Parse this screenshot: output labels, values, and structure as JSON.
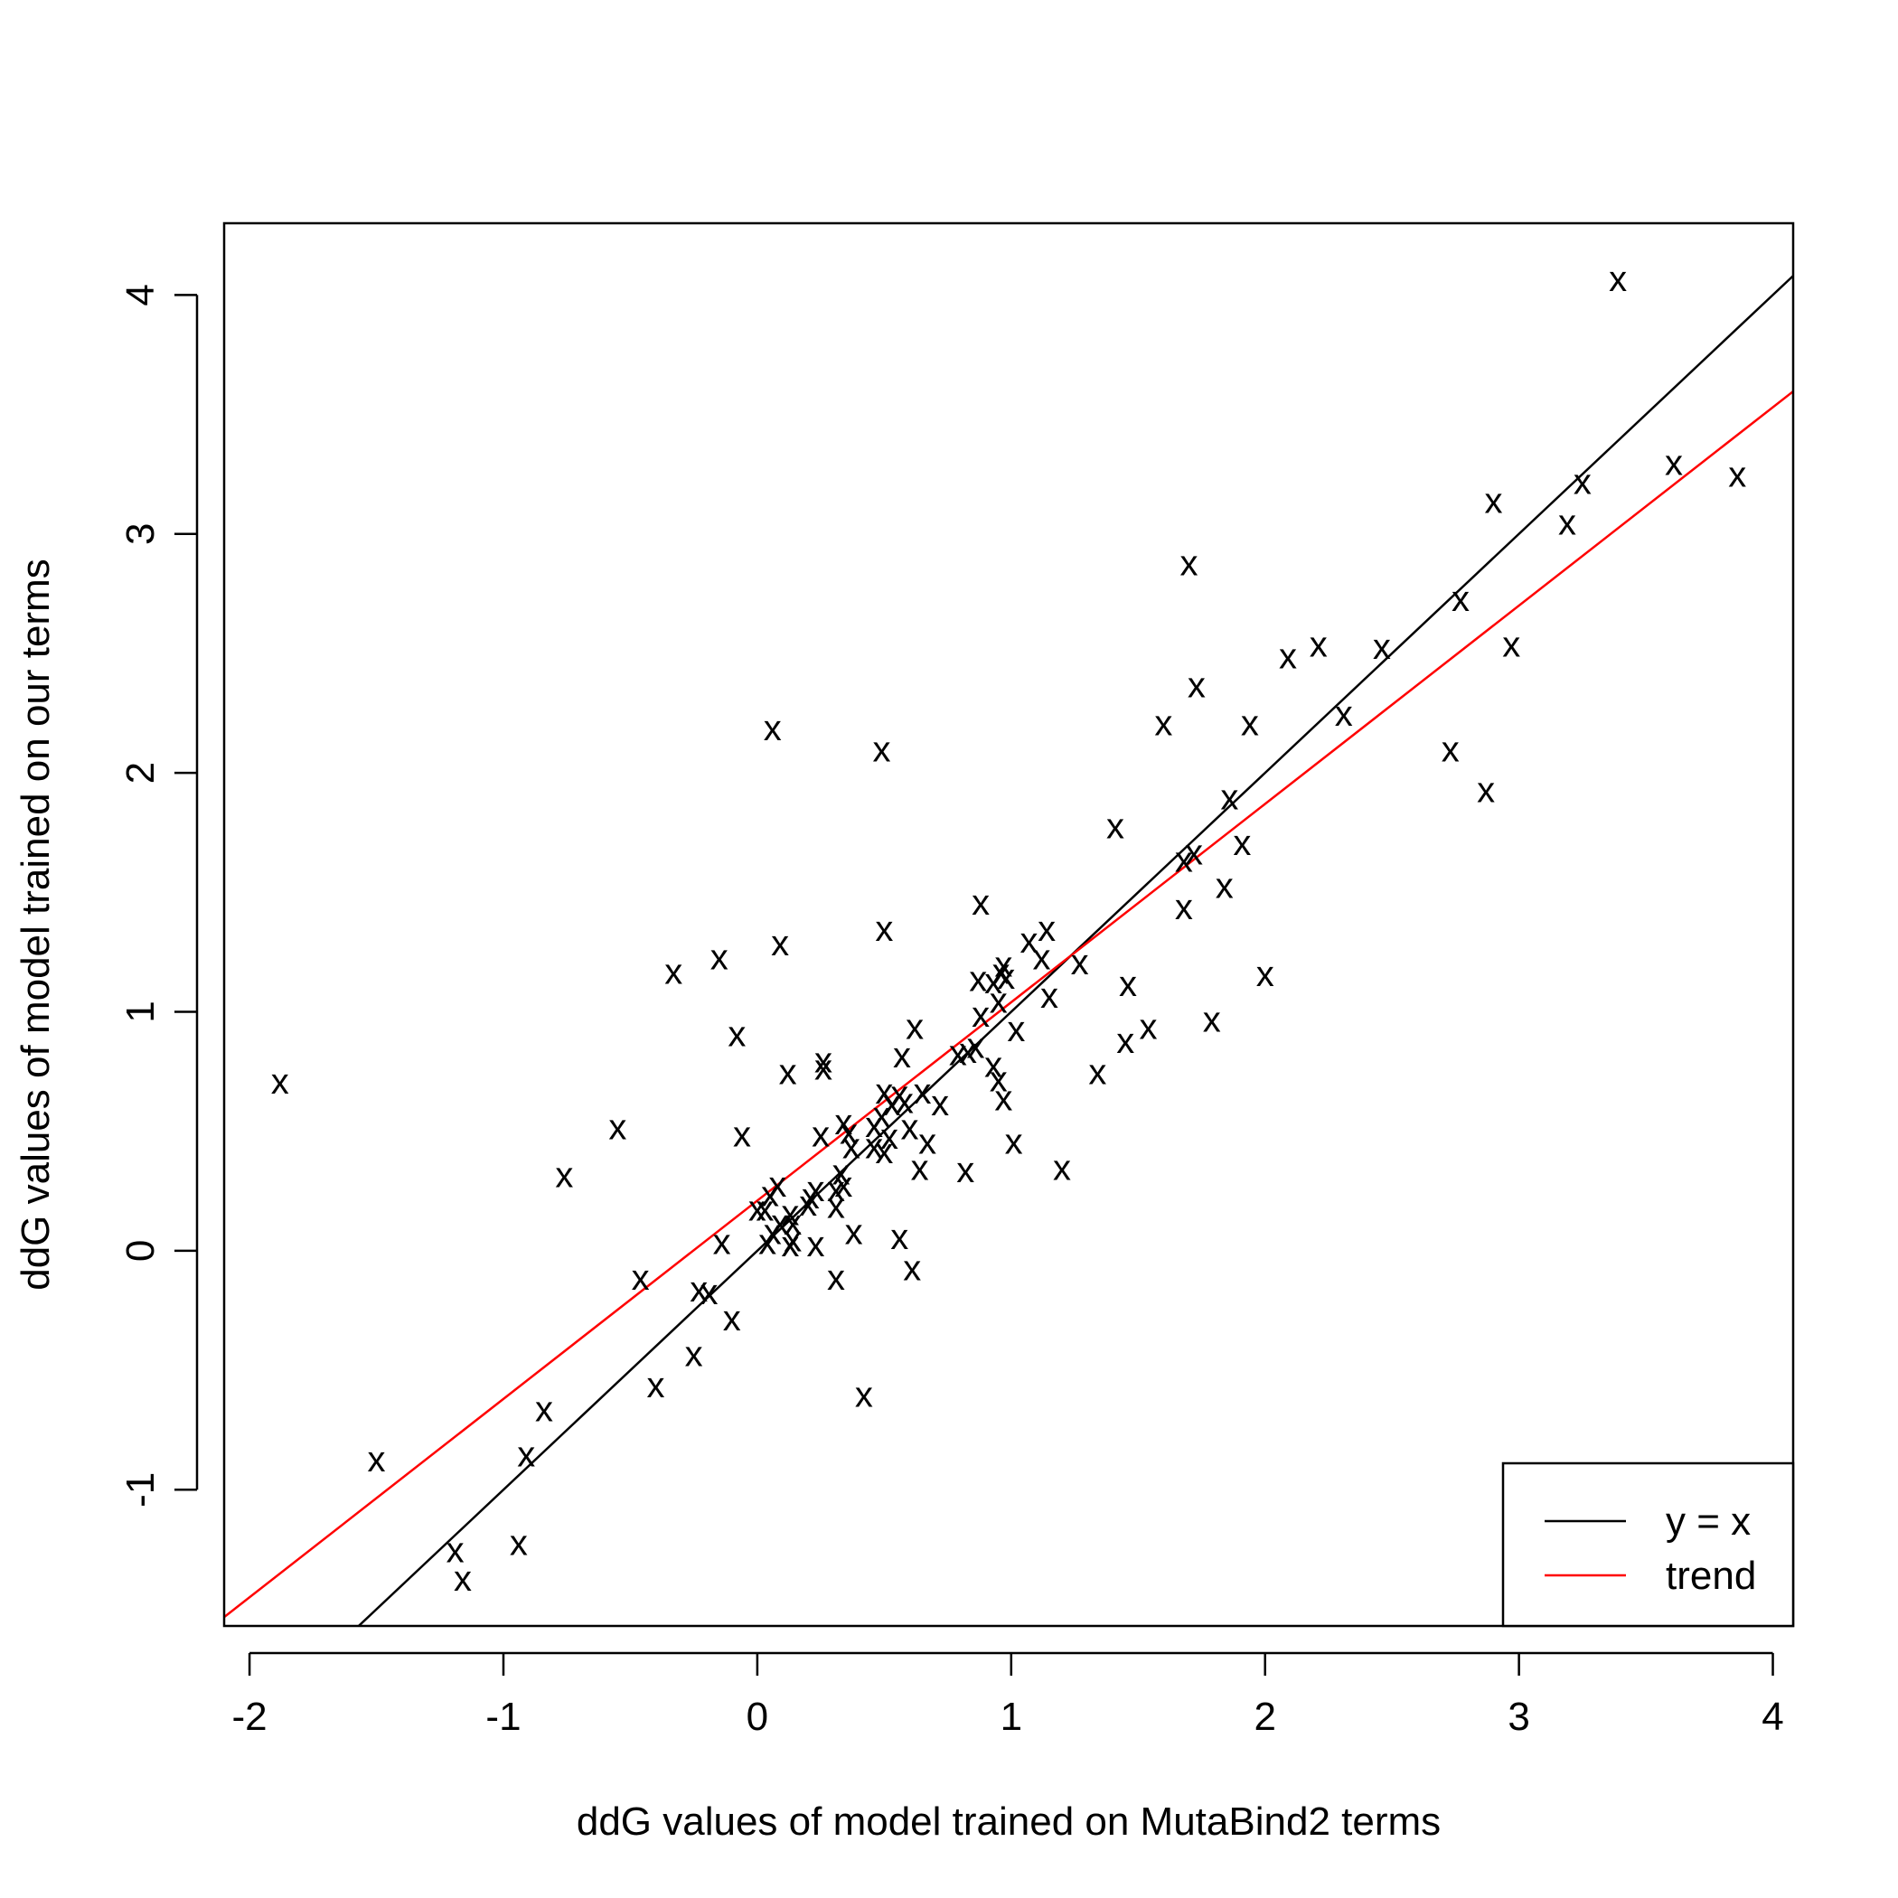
{
  "chart_data": {
    "type": "scatter",
    "title": "",
    "xlabel": "ddG values of model trained on MutaBind2 terms",
    "ylabel": "ddG values of model trained on our terms",
    "xlim": [
      -2.1,
      4.08
    ],
    "ylim": [
      -1.57,
      4.3
    ],
    "x_ticks": [
      -2,
      -1,
      0,
      1,
      2,
      3,
      4
    ],
    "y_ticks": [
      -1,
      0,
      1,
      2,
      3,
      4
    ],
    "x_tick_labels": [
      "-2",
      "-1",
      "0",
      "1",
      "2",
      "3",
      "4"
    ],
    "y_tick_labels": [
      "-1",
      "0",
      "1",
      "2",
      "3",
      "4"
    ],
    "grid": false,
    "marker": "x",
    "legend": {
      "position": "bottom-right",
      "entries": [
        {
          "label": "y = x",
          "color": "#000000"
        },
        {
          "label": "trend",
          "color": "#ff0000"
        }
      ]
    },
    "lines": [
      {
        "name": "y = x",
        "color": "#000000",
        "slope": 1.0,
        "intercept": 0.0
      },
      {
        "name": "trend",
        "color": "#ff0000",
        "slope": 0.83,
        "intercept": 0.21
      }
    ],
    "points": [
      {
        "x": 3.39,
        "y": 4.07
      },
      {
        "x": 3.61,
        "y": 3.3
      },
      {
        "x": 3.86,
        "y": 3.25
      },
      {
        "x": 3.25,
        "y": 3.22
      },
      {
        "x": 2.9,
        "y": 3.14
      },
      {
        "x": 3.19,
        "y": 3.05
      },
      {
        "x": 1.7,
        "y": 2.88
      },
      {
        "x": 2.77,
        "y": 2.73
      },
      {
        "x": 2.97,
        "y": 2.54
      },
      {
        "x": 2.46,
        "y": 2.53
      },
      {
        "x": 2.21,
        "y": 2.54
      },
      {
        "x": 2.09,
        "y": 2.49
      },
      {
        "x": 1.73,
        "y": 2.37
      },
      {
        "x": 2.31,
        "y": 2.25
      },
      {
        "x": 1.6,
        "y": 2.21
      },
      {
        "x": 1.94,
        "y": 2.21
      },
      {
        "x": 2.73,
        "y": 2.1
      },
      {
        "x": 2.87,
        "y": 1.93
      },
      {
        "x": 1.86,
        "y": 1.9
      },
      {
        "x": 1.41,
        "y": 1.78
      },
      {
        "x": 1.91,
        "y": 1.71
      },
      {
        "x": 1.68,
        "y": 1.64
      },
      {
        "x": 1.72,
        "y": 1.67
      },
      {
        "x": 1.84,
        "y": 1.53
      },
      {
        "x": 1.68,
        "y": 1.44
      },
      {
        "x": 0.88,
        "y": 1.46
      },
      {
        "x": 1.14,
        "y": 1.35
      },
      {
        "x": 1.07,
        "y": 1.3
      },
      {
        "x": 1.12,
        "y": 1.23
      },
      {
        "x": 1.27,
        "y": 1.21
      },
      {
        "x": 0.97,
        "y": 1.2
      },
      {
        "x": 0.96,
        "y": 1.17
      },
      {
        "x": 0.98,
        "y": 1.15
      },
      {
        "x": 0.87,
        "y": 1.14
      },
      {
        "x": 0.93,
        "y": 1.13
      },
      {
        "x": 1.46,
        "y": 1.12
      },
      {
        "x": 2.0,
        "y": 1.16
      },
      {
        "x": 0.95,
        "y": 1.05
      },
      {
        "x": 1.15,
        "y": 1.07
      },
      {
        "x": 0.88,
        "y": 0.99
      },
      {
        "x": 1.79,
        "y": 0.97
      },
      {
        "x": 1.54,
        "y": 0.94
      },
      {
        "x": 0.62,
        "y": 0.94
      },
      {
        "x": 1.02,
        "y": 0.93
      },
      {
        "x": 1.45,
        "y": 0.88
      },
      {
        "x": 0.57,
        "y": 0.82
      },
      {
        "x": 0.83,
        "y": 0.84
      },
      {
        "x": 0.79,
        "y": 0.83
      },
      {
        "x": 0.86,
        "y": 0.86
      },
      {
        "x": 0.93,
        "y": 0.78
      },
      {
        "x": 0.95,
        "y": 0.72
      },
      {
        "x": 1.34,
        "y": 0.75
      },
      {
        "x": 0.97,
        "y": 0.64
      },
      {
        "x": 0.5,
        "y": 0.67
      },
      {
        "x": 0.53,
        "y": 0.62
      },
      {
        "x": 0.56,
        "y": 0.66
      },
      {
        "x": 0.58,
        "y": 0.63
      },
      {
        "x": 0.65,
        "y": 0.67
      },
      {
        "x": 0.72,
        "y": 0.62
      },
      {
        "x": 0.49,
        "y": 0.57
      },
      {
        "x": 0.46,
        "y": 0.53
      },
      {
        "x": 0.52,
        "y": 0.48
      },
      {
        "x": 0.6,
        "y": 0.52
      },
      {
        "x": 0.67,
        "y": 0.46
      },
      {
        "x": 1.01,
        "y": 0.46
      },
      {
        "x": 0.46,
        "y": 0.44
      },
      {
        "x": 0.5,
        "y": 0.42
      },
      {
        "x": 0.36,
        "y": 0.5
      },
      {
        "x": 0.34,
        "y": 0.54
      },
      {
        "x": 0.37,
        "y": 0.44
      },
      {
        "x": 0.25,
        "y": 0.49
      },
      {
        "x": 0.26,
        "y": 0.8
      },
      {
        "x": 0.26,
        "y": 0.77
      },
      {
        "x": 0.12,
        "y": 0.75
      },
      {
        "x": 0.64,
        "y": 0.35
      },
      {
        "x": 0.82,
        "y": 0.34
      },
      {
        "x": 1.2,
        "y": 0.35
      },
      {
        "x": 0.33,
        "y": 0.33
      },
      {
        "x": 0.34,
        "y": 0.28
      },
      {
        "x": 0.31,
        "y": 0.26
      },
      {
        "x": 0.23,
        "y": 0.26
      },
      {
        "x": 0.21,
        "y": 0.23
      },
      {
        "x": 0.2,
        "y": 0.2
      },
      {
        "x": 0.31,
        "y": 0.19
      },
      {
        "x": 0.08,
        "y": 0.28
      },
      {
        "x": 0.05,
        "y": 0.24
      },
      {
        "x": 0.03,
        "y": 0.18
      },
      {
        "x": 0.0,
        "y": 0.18
      },
      {
        "x": 0.09,
        "y": 0.12
      },
      {
        "x": 0.13,
        "y": 0.16
      },
      {
        "x": 0.14,
        "y": 0.12
      },
      {
        "x": 0.14,
        "y": 0.05
      },
      {
        "x": 0.06,
        "y": 0.08
      },
      {
        "x": 0.04,
        "y": 0.04
      },
      {
        "x": 0.13,
        "y": 0.03
      },
      {
        "x": 0.23,
        "y": 0.03
      },
      {
        "x": 0.38,
        "y": 0.08
      },
      {
        "x": 0.56,
        "y": 0.06
      },
      {
        "x": 0.61,
        "y": -0.07
      },
      {
        "x": 0.31,
        "y": -0.11
      },
      {
        "x": 0.42,
        "y": -0.6
      },
      {
        "x": -0.14,
        "y": 0.04
      },
      {
        "x": -0.08,
        "y": 0.91
      },
      {
        "x": -0.06,
        "y": 0.49
      },
      {
        "x": 0.09,
        "y": 1.29
      },
      {
        "x": 0.5,
        "y": 1.35
      },
      {
        "x": 0.06,
        "y": 2.19
      },
      {
        "x": 0.49,
        "y": 2.1
      },
      {
        "x": -0.15,
        "y": 1.23
      },
      {
        "x": -0.33,
        "y": 1.17
      },
      {
        "x": -0.55,
        "y": 0.52
      },
      {
        "x": -0.76,
        "y": 0.32
      },
      {
        "x": -1.88,
        "y": 0.71
      },
      {
        "x": -0.46,
        "y": -0.11
      },
      {
        "x": -0.23,
        "y": -0.16
      },
      {
        "x": -0.19,
        "y": -0.17
      },
      {
        "x": -0.1,
        "y": -0.28
      },
      {
        "x": -0.25,
        "y": -0.43
      },
      {
        "x": -0.4,
        "y": -0.56
      },
      {
        "x": -0.84,
        "y": -0.66
      },
      {
        "x": -0.91,
        "y": -0.85
      },
      {
        "x": -1.5,
        "y": -0.87
      },
      {
        "x": -0.94,
        "y": -1.22
      },
      {
        "x": -1.19,
        "y": -1.25
      },
      {
        "x": -1.16,
        "y": -1.37
      }
    ]
  }
}
